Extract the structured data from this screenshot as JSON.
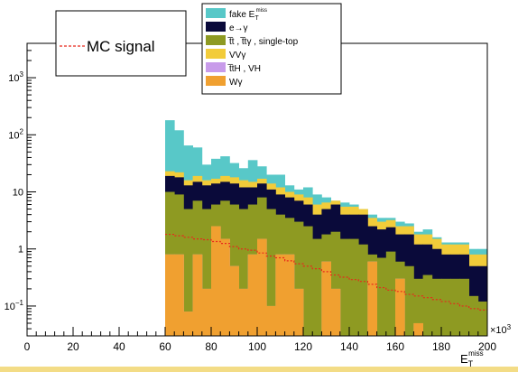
{
  "chart_data": {
    "type": "bar",
    "stacked": true,
    "log_y": true,
    "x_unit_exponent": "×10",
    "x_unit_power": "3",
    "xlabel_main": "E",
    "xlabel_sub": "T",
    "xlabel_sup": "miss",
    "xlim": [
      0,
      200
    ],
    "ylim": [
      0.03,
      4000
    ],
    "x_ticks": [
      "0",
      "20",
      "40",
      "60",
      "80",
      "100",
      "120",
      "140",
      "160",
      "180",
      "200"
    ],
    "y_ticks": [
      {
        "value": 1000,
        "base": "10",
        "exp": "3"
      },
      {
        "value": 100,
        "base": "10",
        "exp": "2"
      },
      {
        "value": 10,
        "base": "10",
        "exp": ""
      },
      {
        "value": 1,
        "base": "1",
        "exp": ""
      },
      {
        "value": 0.1,
        "base": "10",
        "exp": "−1"
      }
    ],
    "bin_edges": [
      60,
      64,
      68,
      72,
      76,
      80,
      84,
      88,
      92,
      96,
      100,
      104,
      108,
      112,
      116,
      120,
      124,
      128,
      132,
      136,
      140,
      144,
      148,
      152,
      156,
      160,
      164,
      168,
      172,
      176,
      180,
      184,
      188,
      192,
      196,
      200
    ],
    "stack_tops": {
      "wgamma": [
        0.8,
        0.8,
        0.08,
        0.8,
        0.2,
        2.5,
        1.5,
        0.5,
        0.2,
        0.8,
        1.5,
        0.1,
        0.8,
        0.8,
        0.2,
        0.03,
        0.03,
        0.6,
        0.2,
        0.03,
        0.03,
        0.03,
        0.6,
        0.03,
        0.03,
        0.3,
        0.03,
        0.05,
        0.03,
        0.03,
        0.03,
        0.03,
        0.03,
        0.03,
        0.03
      ],
      "tth_vh": [
        0.8,
        0.8,
        0.08,
        0.8,
        0.2,
        2.5,
        1.5,
        0.5,
        0.2,
        0.8,
        1.5,
        0.1,
        0.8,
        0.8,
        0.2,
        0.03,
        0.03,
        0.6,
        0.2,
        0.03,
        0.03,
        0.03,
        0.6,
        0.03,
        0.03,
        0.3,
        0.03,
        0.05,
        0.03,
        0.03,
        0.03,
        0.03,
        0.03,
        0.03,
        0.03
      ],
      "vvgamma": [
        0.8,
        0.8,
        0.08,
        0.8,
        0.2,
        2.5,
        1.5,
        0.5,
        0.2,
        0.8,
        1.5,
        0.1,
        0.8,
        0.8,
        0.2,
        0.03,
        0.03,
        0.6,
        0.2,
        0.03,
        0.03,
        0.03,
        0.6,
        0.03,
        0.03,
        0.3,
        0.03,
        0.05,
        0.03,
        0.03,
        0.03,
        0.03,
        0.03,
        0.03,
        0.03
      ],
      "ttbar": [
        10,
        9,
        5,
        7,
        5,
        6,
        7,
        6,
        5,
        6,
        8,
        5,
        4,
        3.5,
        3,
        2.5,
        1.5,
        1.8,
        2,
        1.5,
        1.5,
        1.2,
        0.8,
        0.7,
        0.9,
        0.6,
        0.5,
        0.3,
        0.35,
        0.3,
        0.3,
        0.3,
        0.3,
        0.15,
        0.12
      ],
      "egamma": [
        19,
        18,
        13,
        15,
        13,
        14,
        15,
        14,
        12,
        12,
        14,
        11,
        9,
        8,
        7,
        6,
        4,
        5,
        6,
        4,
        4,
        4,
        2.5,
        2.2,
        2.4,
        1.8,
        1.8,
        1.2,
        1.2,
        1,
        0.8,
        0.8,
        0.8,
        0.5,
        0.5
      ],
      "vv_top": [
        23,
        22,
        16,
        19,
        16,
        17,
        19,
        18,
        16,
        15,
        17,
        14,
        12,
        10,
        9,
        8,
        6,
        6.5,
        7,
        5.5,
        5.5,
        5,
        3.5,
        3,
        3.2,
        2.5,
        2.5,
        1.8,
        1.8,
        1.5,
        1.2,
        1.2,
        1.2,
        0.8,
        0.8
      ],
      "fake": [
        180,
        120,
        65,
        60,
        30,
        38,
        42,
        32,
        26,
        36,
        28,
        20,
        20,
        13,
        11,
        12,
        9,
        8,
        7,
        6.5,
        6,
        5,
        4,
        3.5,
        3.5,
        3,
        2.8,
        2,
        2.2,
        1.6,
        1.3,
        1.3,
        1.3,
        1,
        1
      ]
    },
    "mc_signal": [
      1.8,
      1.7,
      1.6,
      1.5,
      1.45,
      1.35,
      1.25,
      1.1,
      1.0,
      0.95,
      0.85,
      0.75,
      0.7,
      0.62,
      0.55,
      0.5,
      0.45,
      0.4,
      0.35,
      0.32,
      0.29,
      0.27,
      0.24,
      0.21,
      0.19,
      0.18,
      0.16,
      0.15,
      0.14,
      0.13,
      0.12,
      0.11,
      0.1,
      0.09,
      0.085
    ],
    "legend_left": {
      "label": "MC signal",
      "color": "#e8281c"
    },
    "legend_right": [
      {
        "key": "fake",
        "label_main": "fake E",
        "label_sub": "T",
        "label_sup": "miss",
        "color": "#58c8c8"
      },
      {
        "key": "egamma",
        "label_main": "e→γ",
        "label_sub": "",
        "label_sup": "",
        "color": "#0a0a3a"
      },
      {
        "key": "ttbar",
        "label_main": "t̅t , t̅tγ , single-top",
        "label_sub": "",
        "label_sup": "",
        "color": "#8e9a22"
      },
      {
        "key": "vv_top",
        "label_main": "VVγ",
        "label_sub": "",
        "label_sup": "",
        "color": "#f2cc3a"
      },
      {
        "key": "tth_vh",
        "label_main": "t̅tH , VH",
        "label_sub": "",
        "label_sup": "",
        "color": "#c89bea"
      },
      {
        "key": "wgamma",
        "label_main": "Wγ",
        "label_sub": "",
        "label_sup": "",
        "color": "#f0a030"
      }
    ]
  }
}
